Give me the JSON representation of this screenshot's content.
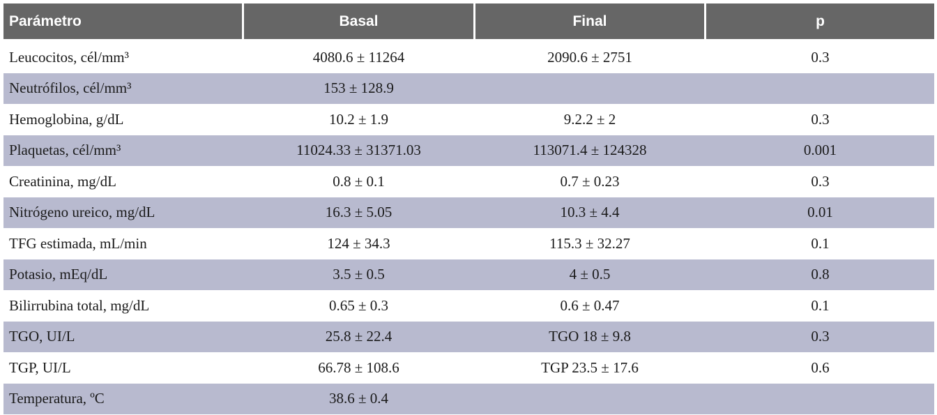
{
  "table": {
    "header": [
      "Parámetro",
      "Basal",
      "Final",
      "p"
    ],
    "rows": [
      {
        "parametro": "Leucocitos, cél/mm³",
        "basal": "4080.6 ± 11264",
        "final": "2090.6 ± 2751",
        "p": "0.3"
      },
      {
        "parametro": "Neutrófilos, cél/mm³",
        "basal": "153 ± 128.9"
      },
      {
        "parametro": "Hemoglobina, g/dL",
        "basal": "10.2 ± 1.9",
        "final": "9.2.2 ± 2",
        "p": "0.3"
      },
      {
        "parametro": "Plaquetas, cél/mm³",
        "basal": "11024.33 ± 31371.03",
        "final": "113071.4 ± 124328",
        "p": "0.001"
      },
      {
        "parametro": "Creatinina, mg/dL",
        "basal": "0.8 ± 0.1",
        "final": "0.7 ± 0.23",
        "p": "0.3"
      },
      {
        "parametro": "Nitrógeno ureico, mg/dL",
        "basal": "16.3 ± 5.05",
        "final": "10.3 ± 4.4",
        "p": "0.01"
      },
      {
        "parametro": "TFG estimada, mL/min",
        "basal": "124 ± 34.3",
        "final": "115.3 ± 32.27",
        "p": "0.1"
      },
      {
        "parametro": "Potasio, mEq/dL",
        "basal": "3.5 ± 0.5",
        "final": "4 ± 0.5",
        "p": "0.8"
      },
      {
        "parametro": "Bilirrubina total, mg/dL",
        "basal": "0.65 ± 0.3",
        "final": "0.6 ± 0.47",
        "p": "0.1"
      },
      {
        "parametro": "TGO, UI/L",
        "basal": "25.8 ± 22.4",
        "final": "TGO 18 ± 9.8",
        "p": "0.3"
      },
      {
        "parametro": "TGP, UI/L",
        "basal": "66.78 ± 108.6",
        "final": "TGP 23.5 ± 17.6",
        "p": "0.6"
      },
      {
        "parametro": "Temperatura, ºC",
        "basal": "38.6 ± 0.4"
      }
    ]
  }
}
